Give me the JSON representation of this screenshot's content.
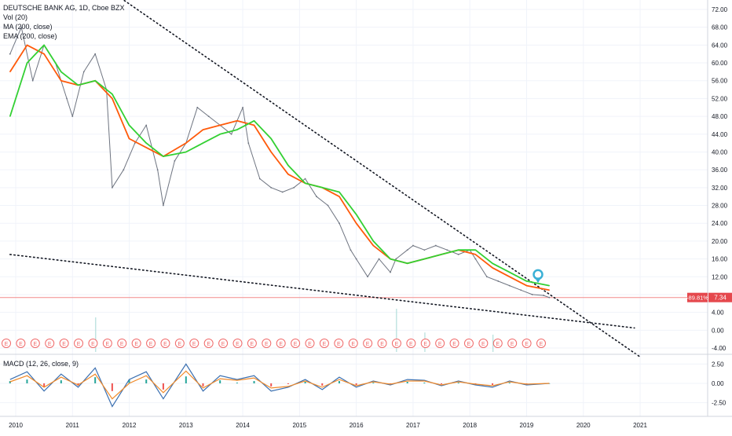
{
  "header": {
    "symbol_line": "DEUTSCHE BANK AG, 1D, Cboe BZX",
    "indicators": [
      "Vol (20)",
      "MA (200, close)",
      "EMA (200, close)"
    ]
  },
  "macd_label": "MACD (12, 26, close, 9)",
  "colors": {
    "price": "#6e7480",
    "ma": "#ff5a0a",
    "ema": "#33d033",
    "trendline": "#131722",
    "last_price_line": "#f28b8b",
    "last_price_badge": "#e5484d",
    "earnings": "#f06a6a",
    "marker": "#3ab0d6",
    "macd": "#3a6fb0",
    "signal": "#f08a2a",
    "hist_pos": "#26a69a",
    "hist_neg": "#ef5350"
  },
  "last_price": {
    "change": "-89.81%",
    "price": "7.34",
    "value": 7.34
  },
  "chart_data": {
    "type": "line",
    "title": "DEUTSCHE BANK AG, 1D, Cboe BZX",
    "price_axis_ticks": [
      "72.00",
      "68.00",
      "64.00",
      "60.00",
      "56.00",
      "52.00",
      "48.00",
      "44.00",
      "40.00",
      "36.00",
      "32.00",
      "28.00",
      "24.00",
      "20.00",
      "16.00",
      "12.00",
      "8.00",
      "4.00",
      "0.00",
      "-4.00"
    ],
    "macd_axis_ticks": [
      "2.50",
      "0.00",
      "-2.50"
    ],
    "x_ticks": [
      "2010",
      "2011",
      "2012",
      "2013",
      "2014",
      "2015",
      "2016",
      "2017",
      "2018",
      "2019",
      "2020",
      "2021"
    ],
    "ylim": [
      -5,
      74
    ],
    "series": [
      {
        "name": "Price",
        "x": [
          2009.9,
          2010.1,
          2010.3,
          2010.5,
          2010.7,
          2010.9,
          2011.0,
          2011.2,
          2011.4,
          2011.6,
          2011.7,
          2011.9,
          2012.1,
          2012.3,
          2012.5,
          2012.6,
          2012.8,
          2013.0,
          2013.2,
          2013.4,
          2013.6,
          2013.8,
          2014.0,
          2014.1,
          2014.3,
          2014.5,
          2014.7,
          2014.9,
          2015.1,
          2015.3,
          2015.5,
          2015.7,
          2015.9,
          2016.0,
          2016.2,
          2016.4,
          2016.6,
          2016.7,
          2016.9,
          2017.0,
          2017.2,
          2017.4,
          2017.6,
          2017.8,
          2018.0,
          2018.1,
          2018.3,
          2018.5,
          2018.7,
          2018.9,
          2019.1,
          2019.3,
          2019.4
        ],
        "values": [
          62,
          68,
          56,
          64,
          60,
          52,
          48,
          58,
          62,
          54,
          32,
          36,
          42,
          46,
          36,
          28,
          38,
          42,
          50,
          48,
          46,
          44,
          50,
          42,
          34,
          32,
          31,
          32,
          34,
          30,
          28,
          24,
          18,
          16,
          12,
          16,
          13,
          16,
          18,
          19,
          18,
          19,
          18,
          17,
          18,
          16,
          12,
          11,
          10,
          9,
          8,
          7.8,
          7.34
        ]
      },
      {
        "name": "MA (200, close)",
        "x": [
          2009.9,
          2010.2,
          2010.5,
          2010.8,
          2011.1,
          2011.4,
          2011.7,
          2012.0,
          2012.3,
          2012.6,
          2013.0,
          2013.3,
          2013.6,
          2013.9,
          2014.2,
          2014.5,
          2014.8,
          2015.1,
          2015.4,
          2015.7,
          2016.0,
          2016.3,
          2016.6,
          2016.9,
          2017.2,
          2017.5,
          2017.8,
          2018.1,
          2018.4,
          2018.7,
          2019.0,
          2019.4
        ],
        "values": [
          58,
          64,
          62,
          56,
          55,
          56,
          52,
          43,
          41,
          39,
          42,
          45,
          46,
          47,
          46,
          40,
          35,
          33,
          32,
          30,
          24,
          19,
          16,
          15,
          16,
          17,
          18,
          17,
          14,
          12,
          10,
          9
        ]
      },
      {
        "name": "EMA (200, close)",
        "x": [
          2009.9,
          2010.2,
          2010.5,
          2010.8,
          2011.1,
          2011.4,
          2011.7,
          2012.0,
          2012.3,
          2012.6,
          2013.0,
          2013.3,
          2013.6,
          2013.9,
          2014.2,
          2014.5,
          2014.8,
          2015.1,
          2015.4,
          2015.7,
          2016.0,
          2016.3,
          2016.6,
          2016.9,
          2017.2,
          2017.5,
          2017.8,
          2018.1,
          2018.4,
          2018.7,
          2019.0,
          2019.4
        ],
        "values": [
          48,
          60,
          64,
          58,
          55,
          56,
          53,
          46,
          42,
          39,
          40,
          42,
          44,
          45,
          47,
          43,
          37,
          33,
          32,
          31,
          26,
          20,
          16,
          15,
          16,
          17,
          18,
          18,
          15,
          13,
          11,
          10
        ]
      }
    ],
    "trendlines": [
      {
        "x": [
          2011.8,
          2021.0
        ],
        "values": [
          75,
          -6
        ]
      },
      {
        "x": [
          2009.9,
          2020.9
        ],
        "values": [
          17,
          0.5
        ]
      }
    ],
    "volume": {
      "x": [
        2011.4,
        2016.7,
        2017.2,
        2018.4
      ],
      "values": [
        0.8,
        1.0,
        0.45,
        0.4
      ]
    },
    "macd": {
      "x": [
        2009.9,
        2010.2,
        2010.5,
        2010.8,
        2011.1,
        2011.4,
        2011.7,
        2012.0,
        2012.3,
        2012.6,
        2013.0,
        2013.3,
        2013.6,
        2013.9,
        2014.2,
        2014.5,
        2014.8,
        2015.1,
        2015.4,
        2015.7,
        2016.0,
        2016.3,
        2016.6,
        2016.9,
        2017.2,
        2017.5,
        2017.8,
        2018.1,
        2018.4,
        2018.7,
        2019.0,
        2019.4
      ],
      "values": [
        0.5,
        1.5,
        -1.0,
        1.2,
        -0.5,
        2.0,
        -3.0,
        0.5,
        1.5,
        -2.0,
        2.5,
        -1.0,
        1.0,
        0.5,
        1.0,
        -1.0,
        -0.5,
        0.5,
        -0.8,
        0.8,
        -0.5,
        0.3,
        -0.2,
        0.5,
        0.4,
        -0.3,
        0.3,
        -0.2,
        -0.5,
        0.3,
        -0.2,
        0.0
      ],
      "signal": [
        0.2,
        1.0,
        -0.5,
        0.8,
        -0.2,
        1.2,
        -2.0,
        0.0,
        1.0,
        -1.2,
        1.6,
        -0.6,
        0.6,
        0.4,
        0.7,
        -0.6,
        -0.4,
        0.3,
        -0.5,
        0.5,
        -0.3,
        0.2,
        -0.1,
        0.3,
        0.3,
        -0.2,
        0.2,
        -0.1,
        -0.3,
        0.2,
        -0.1,
        0.0
      ]
    },
    "earnings_label": "E",
    "earnings_count": 38
  }
}
